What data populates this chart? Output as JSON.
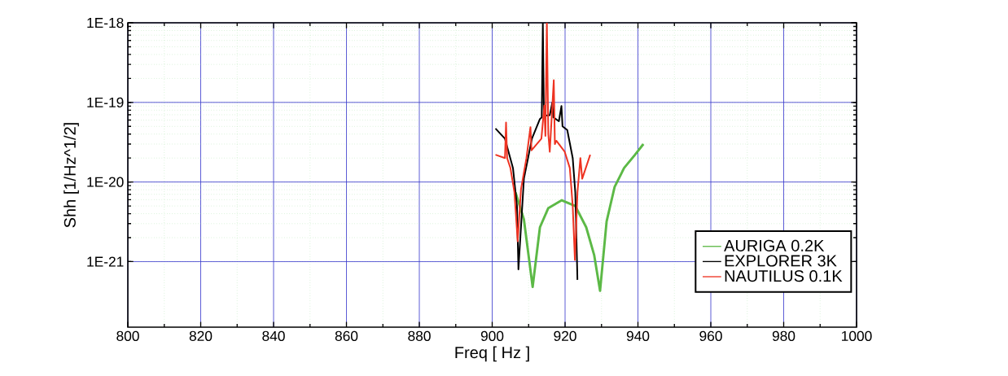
{
  "chart_data": {
    "type": "line",
    "xlabel": "Freq [ Hz ]",
    "ylabel": "Shh [1/Hz^1/2]",
    "xlim": [
      800,
      1000
    ],
    "xticks": [
      800,
      820,
      840,
      860,
      880,
      900,
      920,
      940,
      960,
      980,
      1000
    ],
    "ylim": [
      1.5e-22,
      1e-18
    ],
    "yticks": [
      {
        "value": 1e-21,
        "label": "1E-21"
      },
      {
        "value": 1e-20,
        "label": "1E-20"
      },
      {
        "value": 1e-19,
        "label": "1E-19"
      },
      {
        "value": 1e-18,
        "label": "1E-18"
      }
    ],
    "log": "y",
    "grid": true,
    "legend": "bottom right",
    "series": [
      {
        "name": "AURIGA 0.2K",
        "color": "#5cb946",
        "x": [
          906.4,
          908.7,
          911.1,
          913.1,
          915.4,
          919.1,
          922.8,
          925.8,
          928.0,
          929.6,
          931.4,
          933.6,
          936.2,
          939.2,
          941.5
        ],
        "values": [
          7.4e-21,
          3.4e-21,
          4.8e-22,
          2.7e-21,
          4.7e-21,
          5.9e-21,
          5e-21,
          2.7e-21,
          1.2e-21,
          4.3e-22,
          3.2e-21,
          8.7e-21,
          1.5e-20,
          2.2e-20,
          3e-20
        ]
      },
      {
        "name": "EXPLORER 3K",
        "color": "#000000",
        "x": [
          900.9,
          903.5,
          905.7,
          906.8,
          907.2,
          908.7,
          910.9,
          913.1,
          913.6,
          913.9,
          914.2,
          915.8,
          916.5,
          916.8,
          918.3,
          919.0,
          919.3,
          920.6,
          922.1,
          922.8,
          923.4
        ],
        "values": [
          4.7e-20,
          3.5e-20,
          1.5e-20,
          5e-21,
          8e-22,
          1.1e-20,
          3.5e-20,
          6.2e-20,
          6.5e-20,
          1e-18,
          6.8e-20,
          6.9e-20,
          1e-19,
          6.5e-20,
          5.8e-20,
          9e-20,
          5e-20,
          4.5e-20,
          2e-20,
          7.4e-21,
          5.9e-22
        ]
      },
      {
        "name": "NAUTILUS 0.1K",
        "color": "#ee3322",
        "x": [
          900.9,
          903.5,
          903.8,
          904.1,
          905.0,
          906.1,
          907.0,
          907.9,
          909.4,
          910.5,
          910.8,
          911.7,
          913.5,
          914.3,
          914.6,
          915.0,
          915.4,
          915.8,
          916.9,
          917.2,
          917.6,
          919.9,
          921.3,
          922.1,
          922.7,
          923.4,
          924.2,
          924.7,
          926.9
        ],
        "values": [
          2.2e-20,
          2e-20,
          5.6e-20,
          2e-20,
          1.5e-20,
          7.4e-21,
          1.8e-21,
          8.1e-21,
          2e-20,
          4.9e-20,
          2.5e-20,
          2.8e-20,
          3.5e-20,
          9.1e-20,
          3.8e-20,
          1e-18,
          4e-20,
          2.4e-20,
          1.9e-19,
          3e-20,
          3.3e-20,
          2.4e-20,
          1.5e-20,
          5e-21,
          1.05e-21,
          7.4e-21,
          2e-20,
          1.1e-20,
          2.2e-20
        ]
      }
    ]
  }
}
